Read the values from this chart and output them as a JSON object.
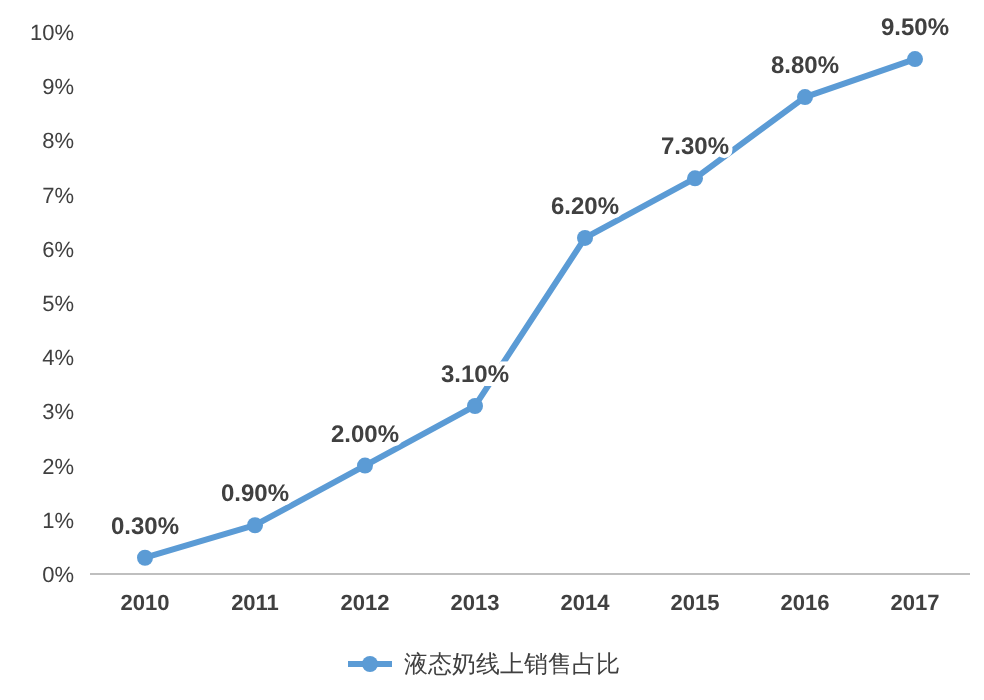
{
  "chart_data": {
    "type": "line",
    "categories": [
      "2010",
      "2011",
      "2012",
      "2013",
      "2014",
      "2015",
      "2016",
      "2017"
    ],
    "series": [
      {
        "name": "液态奶线上销售占比",
        "color": "#5b9bd5",
        "values": [
          0.3,
          0.9,
          2.0,
          3.1,
          6.2,
          7.3,
          8.8,
          9.5
        ],
        "value_labels": [
          "0.30%",
          "0.90%",
          "2.00%",
          "3.10%",
          "6.20%",
          "7.30%",
          "8.80%",
          "9.50%"
        ]
      }
    ],
    "ylim": [
      0,
      10
    ],
    "yticks": [
      {
        "value": 0,
        "label": "0%"
      },
      {
        "value": 1,
        "label": "1%"
      },
      {
        "value": 2,
        "label": "2%"
      },
      {
        "value": 3,
        "label": "3%"
      },
      {
        "value": 4,
        "label": "4%"
      },
      {
        "value": 5,
        "label": "5%"
      },
      {
        "value": 6,
        "label": "6%"
      },
      {
        "value": 7,
        "label": "7%"
      },
      {
        "value": 8,
        "label": "8%"
      },
      {
        "value": 9,
        "label": "9%"
      },
      {
        "value": 10,
        "label": "10%"
      }
    ],
    "legend": "bottom",
    "marker": "circle"
  }
}
